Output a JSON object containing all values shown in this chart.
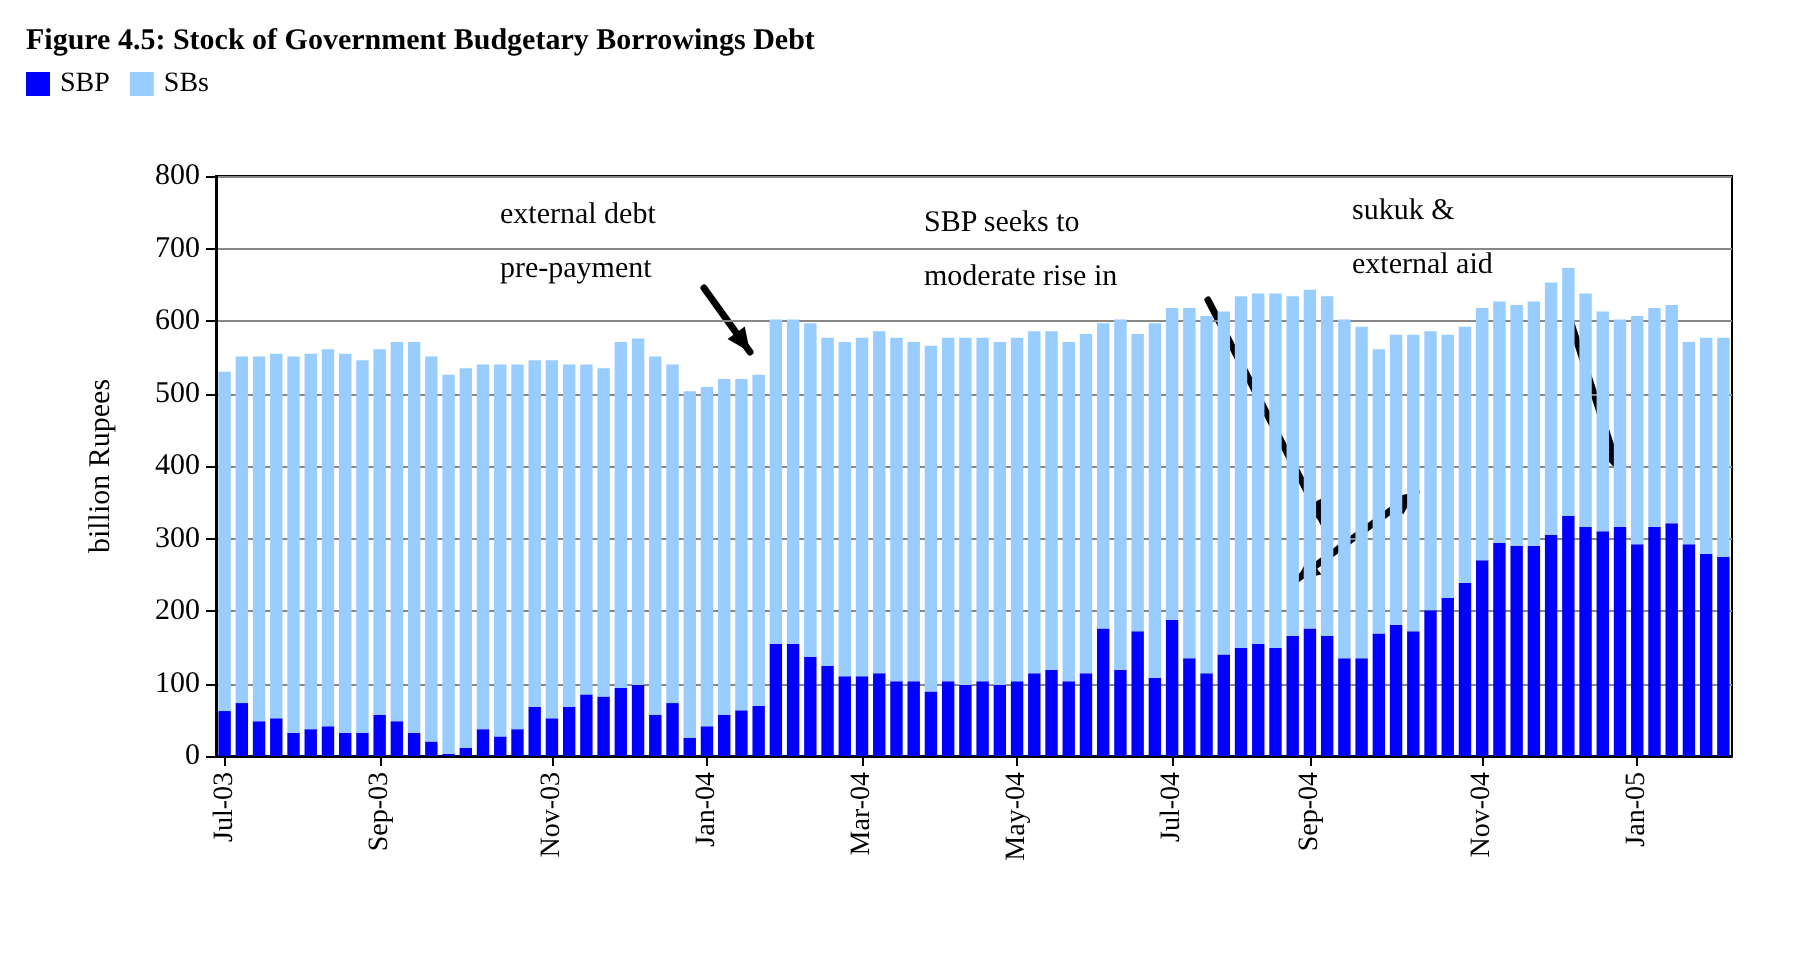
{
  "chart_data": {
    "type": "bar",
    "title": "Figure 4.5: Stock of Government Budgetary Borrowings Debt",
    "ylabel": "billion Rupees",
    "categories": [
      "Jul-03",
      null,
      null,
      null,
      null,
      null,
      null,
      null,
      null,
      "Sep-03",
      null,
      null,
      null,
      null,
      null,
      null,
      null,
      null,
      null,
      "Nov-03",
      null,
      null,
      null,
      null,
      null,
      null,
      null,
      null,
      "Jan-04",
      null,
      null,
      null,
      null,
      null,
      null,
      null,
      null,
      "Mar-04",
      null,
      null,
      null,
      null,
      null,
      null,
      null,
      null,
      "May-04",
      null,
      null,
      null,
      null,
      null,
      null,
      null,
      null,
      "Jul-04",
      null,
      null,
      null,
      null,
      null,
      null,
      null,
      "Sep-04",
      null,
      null,
      null,
      null,
      null,
      null,
      null,
      null,
      null,
      "Nov-04",
      null,
      null,
      null,
      null,
      null,
      null,
      null,
      null,
      "Jan-05",
      null,
      null,
      null,
      null,
      null
    ],
    "series": [
      {
        "name": "SBP",
        "color": "#0000ff",
        "values": [
          62,
          73,
          48,
          52,
          32,
          37,
          41,
          32,
          32,
          57,
          48,
          32,
          20,
          3,
          11,
          37,
          27,
          37,
          68,
          52,
          68,
          85,
          82,
          94,
          98,
          57,
          73,
          25,
          41,
          57,
          63,
          69,
          155,
          155,
          137,
          124,
          110,
          110,
          114,
          103,
          103,
          89,
          103,
          98,
          103,
          98,
          103,
          114,
          119,
          103,
          114,
          176,
          119,
          172,
          108,
          188,
          135,
          114,
          140,
          149,
          155,
          149,
          166,
          176,
          166,
          135,
          135,
          169,
          181,
          172,
          201,
          218,
          239,
          270,
          294,
          290,
          290,
          305,
          331,
          316,
          310,
          316,
          292,
          316,
          321,
          292,
          279,
          275
        ]
      },
      {
        "name": "SBs",
        "color": "#99ccff",
        "values": [
          468,
          478,
          503,
          503,
          519,
          518,
          520,
          523,
          514,
          504,
          523,
          539,
          531,
          523,
          524,
          503,
          513,
          503,
          478,
          494,
          472,
          455,
          453,
          477,
          478,
          494,
          467,
          478,
          468,
          463,
          457,
          457,
          447,
          447,
          460,
          453,
          461,
          467,
          472,
          474,
          468,
          477,
          474,
          479,
          474,
          473,
          474,
          472,
          467,
          468,
          468,
          421,
          483,
          410,
          489,
          430,
          483,
          493,
          473,
          485,
          483,
          489,
          468,
          467,
          468,
          467,
          457,
          392,
          400,
          409,
          385,
          363,
          353,
          348,
          333,
          332,
          337,
          348,
          342,
          322,
          303,
          286,
          315,
          302,
          301,
          279,
          298,
          302
        ]
      }
    ],
    "stacked": true,
    "ylim": [
      0,
      800
    ],
    "yticks": [
      0,
      100,
      200,
      300,
      400,
      500,
      600,
      700,
      800
    ],
    "grid": "y",
    "legend": "top left",
    "annotations": [
      "external debt\npre-payment",
      "SBP seeks to\nmoderate rise in",
      "sukuk &\nexternal aid"
    ]
  }
}
